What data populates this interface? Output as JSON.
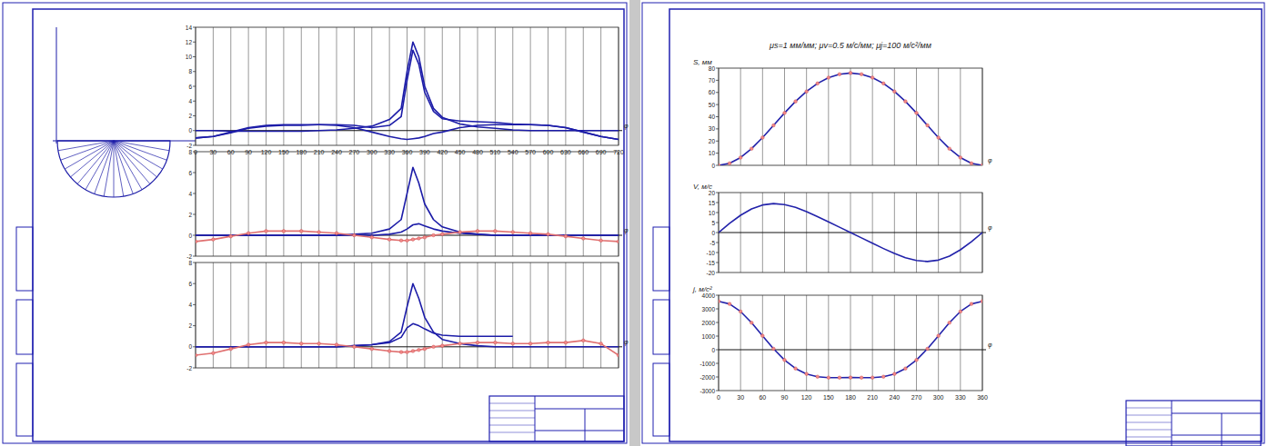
{
  "chart_data": [
    {
      "type": "line",
      "x_label": "φ",
      "x": [
        0,
        30,
        60,
        90,
        120,
        150,
        180,
        210,
        240,
        270,
        300,
        330,
        350,
        360,
        370,
        380,
        390,
        405,
        420,
        450,
        480,
        510,
        540,
        570,
        600,
        630,
        660,
        690,
        720
      ],
      "xlim": [
        0,
        720
      ],
      "xticks": [
        0,
        30,
        60,
        90,
        120,
        150,
        180,
        210,
        240,
        270,
        300,
        330,
        360,
        390,
        420,
        450,
        480,
        510,
        540,
        570,
        600,
        630,
        660,
        690,
        720
      ],
      "ylim": [
        -2,
        14
      ],
      "yticks": [
        -2,
        0,
        2,
        4,
        6,
        8,
        10,
        12,
        14
      ],
      "grid": true,
      "tick_labels": true,
      "series": [
        {
          "color": "#1c1ca8",
          "values": [
            0,
            0,
            -0.1,
            -0.1,
            -0.1,
            -0.1,
            -0.1,
            0,
            0.1,
            0.3,
            0.6,
            1.5,
            3,
            8,
            12,
            10,
            6,
            3,
            1.8,
            0.9,
            0.5,
            0.3,
            0.1,
            0,
            0,
            0,
            0,
            0,
            0
          ]
        },
        {
          "color": "#1c1ca8",
          "values": [
            -1,
            -0.8,
            -0.2,
            0.4,
            0.7,
            0.8,
            0.8,
            0.8,
            0.7,
            0.4,
            -0.2,
            -0.8,
            -1.1,
            -1.2,
            -1.1,
            -1,
            -0.8,
            -0.4,
            -0.2,
            0.4,
            0.7,
            0.8,
            0.8,
            0.8,
            0.7,
            0.4,
            -0.2,
            -0.8,
            -1.2
          ]
        },
        {
          "color": "#1c1ca8",
          "values": [
            -1,
            -0.8,
            -0.3,
            0.3,
            0.6,
            0.7,
            0.7,
            0.8,
            0.8,
            0.7,
            0.4,
            0.7,
            1.9,
            6.8,
            10.9,
            9,
            5.2,
            2.6,
            1.6,
            1.3,
            1.2,
            1.1,
            0.9,
            0.8,
            0.7,
            0.4,
            -0.2,
            -0.8,
            -1.2
          ]
        }
      ]
    },
    {
      "type": "line",
      "x_label": "φ",
      "x": [
        0,
        30,
        60,
        90,
        120,
        150,
        180,
        210,
        240,
        270,
        300,
        330,
        350,
        360,
        370,
        380,
        390,
        405,
        420,
        450,
        480,
        510,
        540,
        570,
        600,
        630,
        660,
        690,
        720
      ],
      "xlim": [
        0,
        720
      ],
      "xticks": [
        0,
        30,
        60,
        90,
        120,
        150,
        180,
        210,
        240,
        270,
        300,
        330,
        360,
        390,
        420,
        450,
        480,
        510,
        540,
        570,
        600,
        630,
        660,
        690,
        720
      ],
      "ylim": [
        -2,
        8
      ],
      "yticks": [
        -2,
        0,
        2,
        4,
        6,
        8
      ],
      "grid": true,
      "tick_labels": "y",
      "series": [
        {
          "color": "#1c1ca8",
          "values": [
            0,
            0,
            0,
            0,
            0,
            0,
            0,
            0,
            0,
            0.1,
            0.2,
            0.6,
            1.5,
            4,
            6.5,
            5,
            3,
            1.5,
            0.8,
            0.3,
            0.1,
            0,
            0,
            0,
            0,
            0,
            0,
            0,
            0
          ]
        },
        {
          "color": "#1c1ca8",
          "values": [
            0,
            0,
            0,
            0,
            0,
            0,
            0,
            0,
            0,
            0,
            0,
            0.1,
            0.3,
            0.6,
            1,
            1.1,
            0.9,
            0.6,
            0.4,
            0.2,
            0.1,
            0,
            0,
            0,
            0,
            0,
            0,
            0,
            0
          ]
        },
        {
          "color": "#e07070",
          "marker": "circle",
          "values": [
            -0.6,
            -0.4,
            -0.1,
            0.2,
            0.4,
            0.4,
            0.4,
            0.3,
            0.2,
            0,
            -0.2,
            -0.4,
            -0.5,
            -0.5,
            -0.4,
            -0.3,
            -0.2,
            0,
            0.1,
            0.3,
            0.4,
            0.4,
            0.3,
            0.2,
            0.1,
            -0.1,
            -0.3,
            -0.5,
            -0.6
          ]
        }
      ]
    },
    {
      "type": "line",
      "x_label": "φ",
      "x": [
        0,
        30,
        60,
        90,
        120,
        150,
        180,
        210,
        240,
        270,
        300,
        330,
        350,
        360,
        370,
        380,
        390,
        405,
        420,
        450,
        480,
        510,
        540,
        570,
        600,
        630,
        660,
        690,
        720
      ],
      "xlim": [
        0,
        720
      ],
      "xticks": [
        0,
        30,
        60,
        90,
        120,
        150,
        180,
        210,
        240,
        270,
        300,
        330,
        360,
        390,
        420,
        450,
        480,
        510,
        540,
        570,
        600,
        630,
        660,
        690,
        720
      ],
      "ylim": [
        -2,
        8
      ],
      "yticks": [
        -2,
        0,
        2,
        4,
        6,
        8
      ],
      "grid": true,
      "tick_labels": "y",
      "series": [
        {
          "color": "#1c1ca8",
          "values": [
            0,
            0,
            0,
            0,
            0,
            0,
            0,
            0,
            0,
            0.1,
            0.2,
            0.5,
            1.4,
            3.8,
            6,
            4.6,
            2.8,
            1.4,
            0.7,
            0.3,
            0.1,
            0,
            0,
            0,
            0,
            0,
            0,
            0,
            0
          ]
        },
        {
          "color": "#1c1ca8",
          "values": [
            0,
            0,
            0,
            0,
            0,
            0,
            0,
            0,
            0,
            0.1,
            0.2,
            0.4,
            0.9,
            1.8,
            2.2,
            2,
            1.7,
            1.3,
            1.1,
            1,
            1,
            1,
            1,
            null,
            null,
            null,
            null,
            null,
            null
          ]
        },
        {
          "color": "#e07070",
          "marker": "circle",
          "values": [
            -0.8,
            -0.6,
            -0.2,
            0.2,
            0.4,
            0.4,
            0.3,
            0.3,
            0.2,
            0,
            -0.2,
            -0.4,
            -0.5,
            -0.5,
            -0.4,
            -0.3,
            -0.2,
            0,
            0.1,
            0.3,
            0.4,
            0.4,
            0.3,
            0.3,
            0.4,
            0.4,
            0.6,
            0.3,
            -0.8
          ]
        }
      ]
    },
    {
      "type": "line",
      "y_label": "S, мм",
      "x_label": "φ",
      "annotation": "μs=1 мм/мм;  μv=0.5 м/с/мм;  μj=100 м/с²/мм",
      "x": [
        0,
        15,
        30,
        45,
        60,
        75,
        90,
        105,
        120,
        135,
        150,
        165,
        180,
        195,
        210,
        225,
        240,
        255,
        270,
        285,
        300,
        315,
        330,
        345,
        360
      ],
      "xlim": [
        0,
        360
      ],
      "xticks": [
        0,
        30,
        60,
        90,
        120,
        150,
        180,
        210,
        240,
        270,
        300,
        330,
        360
      ],
      "ylim": [
        0,
        80
      ],
      "yticks": [
        0,
        10,
        20,
        30,
        40,
        50,
        60,
        70,
        80
      ],
      "grid": true,
      "tick_labels": "y",
      "series": [
        {
          "color": "#2222aa",
          "marker": "circle",
          "values": [
            0,
            1.64,
            6.38,
            13.7,
            22.8,
            32.9,
            43.1,
            52.6,
            60.8,
            67.4,
            72.2,
            75,
            76,
            75,
            72.2,
            67.4,
            60.8,
            52.6,
            43.1,
            32.9,
            22.8,
            13.7,
            6.38,
            1.64,
            0
          ]
        }
      ]
    },
    {
      "type": "line",
      "y_label": "V, м/с",
      "x_label": "φ",
      "x": [
        0,
        15,
        30,
        45,
        60,
        75,
        90,
        105,
        120,
        135,
        150,
        165,
        180,
        195,
        210,
        225,
        240,
        255,
        270,
        285,
        300,
        315,
        330,
        345,
        360
      ],
      "xlim": [
        0,
        360
      ],
      "xticks": [
        0,
        30,
        60,
        90,
        120,
        150,
        180,
        210,
        240,
        270,
        300,
        330,
        360
      ],
      "ylim": [
        -20,
        20
      ],
      "yticks": [
        -20,
        -15,
        -10,
        -5,
        0,
        5,
        10,
        15,
        20
      ],
      "grid": true,
      "tick_labels": "y",
      "series": [
        {
          "color": "#2222aa",
          "values": [
            0,
            4.57,
            8.64,
            11.8,
            13.8,
            14.5,
            14,
            12.6,
            10.5,
            8,
            5.36,
            2.68,
            0,
            -2.68,
            -5.36,
            -8,
            -10.5,
            -12.6,
            -14,
            -14.5,
            -13.8,
            -11.8,
            -8.64,
            -4.57,
            0
          ]
        }
      ]
    },
    {
      "type": "line",
      "y_label": "j, м/с²",
      "x_label": "φ",
      "x": [
        0,
        15,
        30,
        45,
        60,
        75,
        90,
        105,
        120,
        135,
        150,
        165,
        180,
        195,
        210,
        225,
        240,
        255,
        270,
        285,
        300,
        315,
        330,
        345,
        360
      ],
      "xlim": [
        0,
        360
      ],
      "xticks": [
        0,
        30,
        60,
        90,
        120,
        150,
        180,
        210,
        240,
        270,
        300,
        330,
        360
      ],
      "ylim": [
        -3000,
        4000
      ],
      "yticks": [
        -3000,
        -2000,
        -1000,
        0,
        1000,
        2000,
        3000,
        4000
      ],
      "grid": true,
      "tick_labels": true,
      "series": [
        {
          "color": "#2222aa",
          "marker": "circle",
          "values": [
            3556,
            3360,
            2803,
            1980,
            1022,
            70,
            -756,
            -1380,
            -1778,
            -1980,
            -2047,
            -2050,
            -2044,
            -2050,
            -2047,
            -1980,
            -1778,
            -1380,
            -756,
            70,
            1022,
            1980,
            2803,
            3360,
            3556
          ]
        }
      ]
    }
  ]
}
